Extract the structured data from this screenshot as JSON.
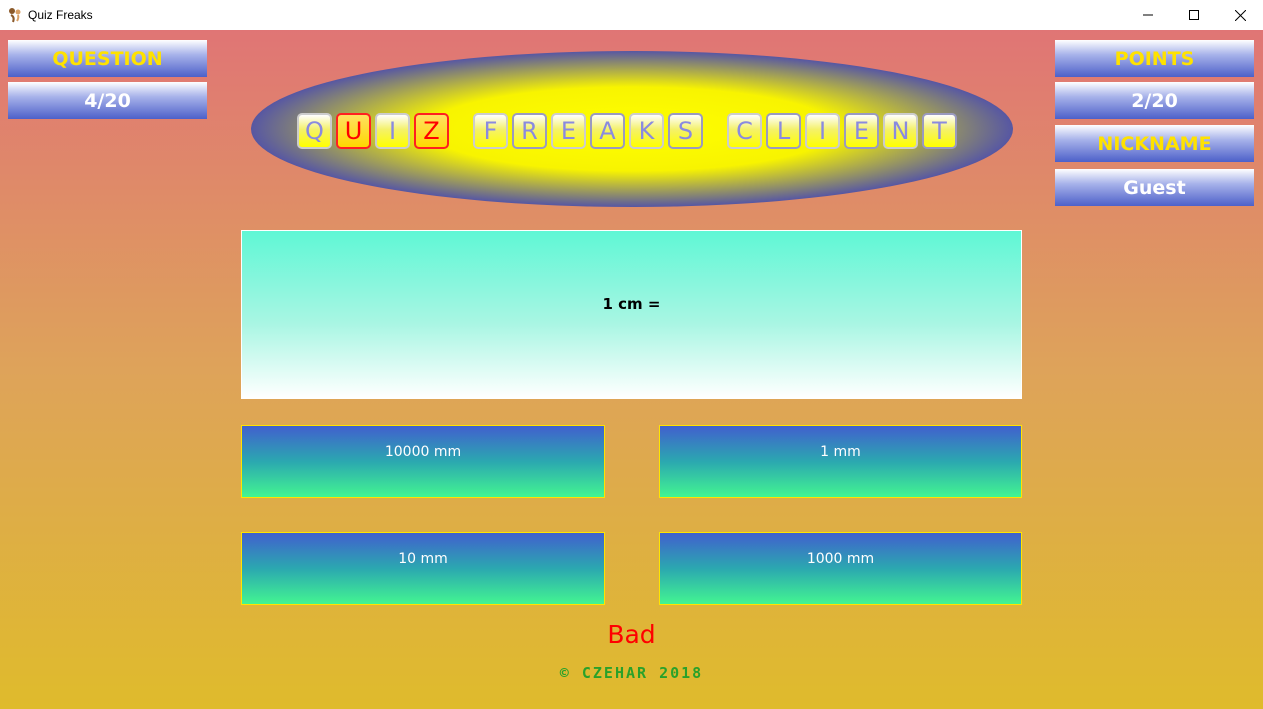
{
  "window": {
    "title": "Quiz Freaks",
    "minimize_icon": "minimize-icon",
    "maximize_icon": "maximize-icon",
    "close_icon": "close-icon"
  },
  "left_panel": {
    "question_label": "QUESTION",
    "question_value": "4/20"
  },
  "right_panel": {
    "points_label": "POINTS",
    "points_value": "2/20",
    "nickname_label": "NICKNAME",
    "nickname_value": "Guest"
  },
  "logo": {
    "tiles": [
      {
        "letter": "Q",
        "style": "normal"
      },
      {
        "letter": "U",
        "style": "red"
      },
      {
        "letter": "I",
        "style": "normal"
      },
      {
        "letter": "Z",
        "style": "red"
      },
      {
        "letter": "",
        "style": "space"
      },
      {
        "letter": "F",
        "style": "normal"
      },
      {
        "letter": "R",
        "style": "grayb"
      },
      {
        "letter": "E",
        "style": "normal"
      },
      {
        "letter": "A",
        "style": "grayb"
      },
      {
        "letter": "K",
        "style": "normal"
      },
      {
        "letter": "S",
        "style": "grayb"
      },
      {
        "letter": "",
        "style": "space"
      },
      {
        "letter": "C",
        "style": "normal"
      },
      {
        "letter": "L",
        "style": "grayb"
      },
      {
        "letter": "I",
        "style": "normal"
      },
      {
        "letter": "E",
        "style": "grayb"
      },
      {
        "letter": "N",
        "style": "normal"
      },
      {
        "letter": "T",
        "style": "grayb"
      }
    ]
  },
  "question": {
    "text": "1 cm ="
  },
  "answers": [
    {
      "label": "10000 mm"
    },
    {
      "label": "1 mm"
    },
    {
      "label": "10 mm"
    },
    {
      "label": "1000 mm"
    }
  ],
  "feedback": {
    "result": "Bad",
    "result_color": "#ff0000"
  },
  "footer": {
    "copyright": "© CZEHAR 2018"
  },
  "colors": {
    "label_yellow": "#ffe200",
    "copyright_green": "#2aa12a"
  }
}
